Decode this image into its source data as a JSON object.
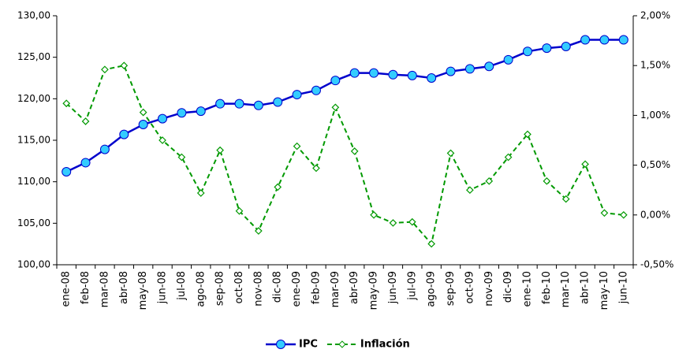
{
  "chart_data": {
    "type": "line",
    "categories": [
      "ene-08",
      "feb-08",
      "mar-08",
      "abr-08",
      "may-08",
      "jun-08",
      "jul-08",
      "ago-08",
      "sep-08",
      "oct-08",
      "nov-08",
      "dic-08",
      "ene-09",
      "feb-09",
      "mar-09",
      "abr-09",
      "may-09",
      "jun-09",
      "jul-09",
      "ago-09",
      "sep-09",
      "oct-09",
      "nov-09",
      "dic-09",
      "ene-10",
      "feb-10",
      "mar-10",
      "abr-10",
      "may-10",
      "jun-10"
    ],
    "series": [
      {
        "name": "IPC",
        "color": "#0000cc",
        "marker_color": "#33ccff",
        "line_style": "solid",
        "values": [
          111.2,
          112.3,
          113.9,
          115.7,
          116.9,
          117.6,
          118.3,
          118.5,
          119.4,
          119.4,
          119.2,
          119.6,
          120.5,
          121.0,
          122.2,
          123.1,
          123.1,
          122.9,
          122.8,
          122.5,
          123.3,
          123.6,
          123.9,
          124.7,
          125.7,
          126.1,
          126.3,
          127.1,
          127.1,
          127.1
        ]
      },
      {
        "name": "Inflación",
        "color": "#009900",
        "marker_color": "#ffffff",
        "line_style": "dashed",
        "axis": "y2",
        "values": [
          1.12,
          0.94,
          1.46,
          1.5,
          1.03,
          0.75,
          0.58,
          0.22,
          0.65,
          0.04,
          -0.16,
          0.28,
          0.69,
          0.47,
          1.08,
          0.64,
          0.0,
          -0.08,
          -0.07,
          -0.29,
          0.62,
          0.25,
          0.34,
          0.58,
          0.81,
          0.34,
          0.16,
          0.51,
          0.02,
          0.0
        ]
      }
    ],
    "ylim": [
      100,
      130
    ],
    "yticks": [
      {
        "value": 100,
        "label": "100,00"
      },
      {
        "value": 105,
        "label": "105,00"
      },
      {
        "value": 110,
        "label": "110,00"
      },
      {
        "value": 115,
        "label": "115,00"
      },
      {
        "value": 120,
        "label": "120,00"
      },
      {
        "value": 125,
        "label": "125,00"
      },
      {
        "value": 130,
        "label": "130,00"
      }
    ],
    "y2lim": [
      -0.5,
      2
    ],
    "y2ticks": [
      {
        "value": -0.5,
        "label": "-0,50%"
      },
      {
        "value": 0,
        "label": "0,00%"
      },
      {
        "value": 0.5,
        "label": "0,50%"
      },
      {
        "value": 1,
        "label": "1,00%"
      },
      {
        "value": 1.5,
        "label": "1,50%"
      },
      {
        "value": 2,
        "label": "2,00%"
      }
    ],
    "grid": false,
    "legend": "bottom"
  }
}
